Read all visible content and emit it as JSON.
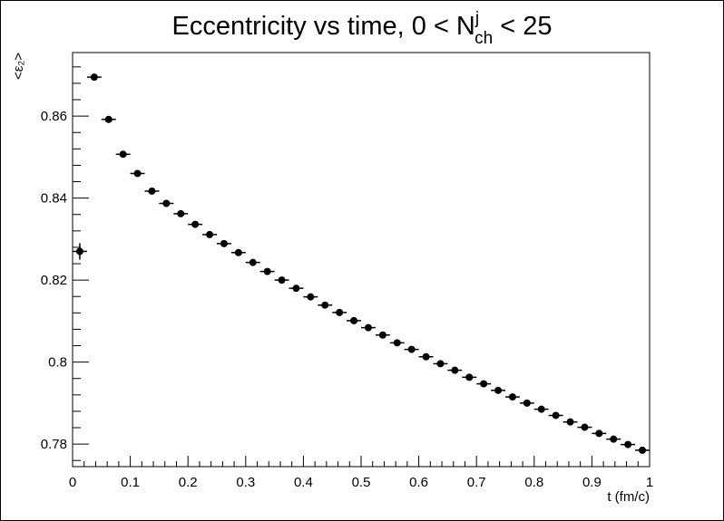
{
  "chart_data": {
    "type": "scatter",
    "title": {
      "prefix": "Eccentricity vs time, 0 < N",
      "superscript": "j",
      "subscript": "ch",
      "suffix": " < 25"
    },
    "xlabel": "t (fm/c)",
    "ylabel": "<ε₂>",
    "xlim": [
      0,
      1
    ],
    "ylim": [
      0.7745,
      0.8755
    ],
    "x_ticks": [
      0,
      0.1,
      0.2,
      0.3,
      0.4,
      0.5,
      0.6,
      0.7,
      0.8,
      0.9,
      1
    ],
    "x_tick_labels": [
      "0",
      "0.1",
      "0.2",
      "0.3",
      "0.4",
      "0.5",
      "0.6",
      "0.7",
      "0.8",
      "0.9",
      "1"
    ],
    "y_ticks": [
      0.78,
      0.8,
      0.82,
      0.84,
      0.86
    ],
    "y_tick_labels": [
      "0.78",
      "0.8",
      "0.82",
      "0.84",
      "0.86"
    ],
    "grid": false,
    "legend": "none",
    "marker_color": "#000000",
    "x_bin_halfwidth": 0.0125,
    "series": [
      {
        "x": [
          0.0125,
          0.0375,
          0.0625,
          0.0875,
          0.1125,
          0.1375,
          0.1625,
          0.1875,
          0.2125,
          0.2375,
          0.2625,
          0.2875,
          0.3125,
          0.3375,
          0.3625,
          0.3875,
          0.4125,
          0.4375,
          0.4625,
          0.4875,
          0.5125,
          0.5375,
          0.5625,
          0.5875,
          0.6125,
          0.6375,
          0.6625,
          0.6875,
          0.7125,
          0.7375,
          0.7625,
          0.7875,
          0.8125,
          0.8375,
          0.8625,
          0.8875,
          0.9125,
          0.9375,
          0.9625,
          0.9875
        ],
        "y": [
          0.827,
          0.8695,
          0.8592,
          0.8507,
          0.846,
          0.8417,
          0.8387,
          0.8362,
          0.8336,
          0.8311,
          0.8289,
          0.8267,
          0.8243,
          0.8221,
          0.82,
          0.818,
          0.8159,
          0.8139,
          0.8121,
          0.8101,
          0.8084,
          0.8066,
          0.8047,
          0.8031,
          0.8013,
          0.7996,
          0.798,
          0.7963,
          0.7947,
          0.7931,
          0.7915,
          0.79,
          0.7885,
          0.787,
          0.7854,
          0.7841,
          0.7826,
          0.7812,
          0.7799,
          0.7785
        ],
        "yerr": [
          0.002,
          0.0006,
          0.0005,
          0.0004,
          0.0004,
          0.0004,
          0.0003,
          0.0003,
          0.0003,
          0.0003,
          0.0003,
          0.0003,
          0.0003,
          0.0003,
          0.0003,
          0.0003,
          0.0003,
          0.0003,
          0.0003,
          0.0003,
          0.0003,
          0.0003,
          0.0003,
          0.0003,
          0.0003,
          0.0003,
          0.0003,
          0.0003,
          0.0003,
          0.0003,
          0.0003,
          0.0003,
          0.0003,
          0.0003,
          0.0003,
          0.0003,
          0.0003,
          0.0003,
          0.0003,
          0.0003
        ]
      }
    ]
  }
}
